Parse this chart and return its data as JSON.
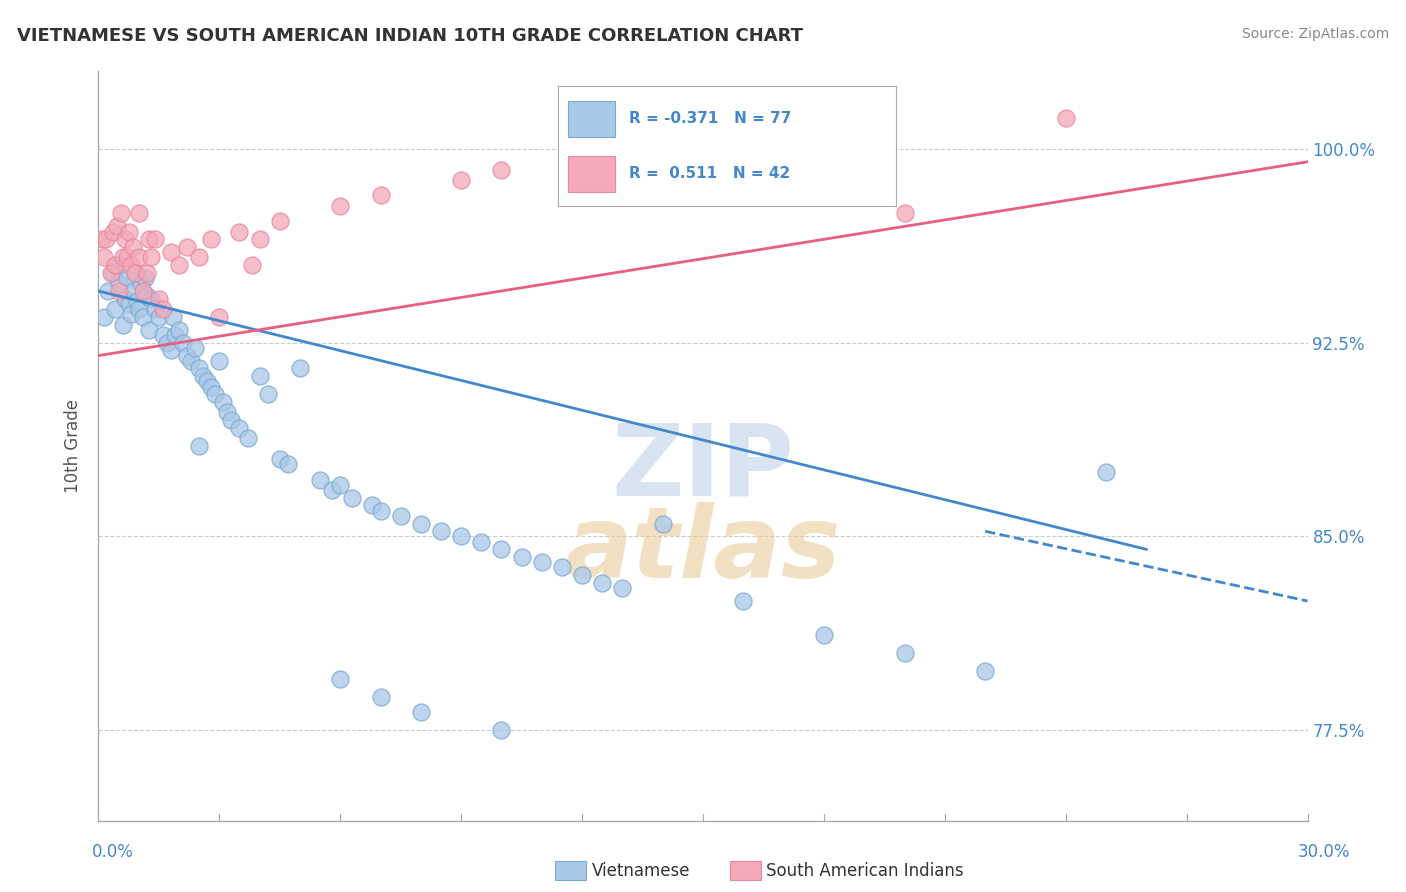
{
  "title": "VIETNAMESE VS SOUTH AMERICAN INDIAN 10TH GRADE CORRELATION CHART",
  "source": "Source: ZipAtlas.com",
  "ylabel": "10th Grade",
  "xlim": [
    0.0,
    30.0
  ],
  "ylim": [
    74.0,
    103.0
  ],
  "yticks": [
    77.5,
    85.0,
    92.5,
    100.0
  ],
  "legend_blue_r": "R = -0.371",
  "legend_blue_n": "N = 77",
  "legend_pink_r": "R =  0.511",
  "legend_pink_n": "N = 42",
  "blue_color": "#a8c8e8",
  "pink_color": "#f4a8b8",
  "blue_edge_color": "#7aaad0",
  "pink_edge_color": "#e888a0",
  "blue_line_color": "#4488cc",
  "pink_line_color": "#e86080",
  "tick_label_color": "#4488cc",
  "title_color": "#333333",
  "blue_trend": [
    0.0,
    94.5,
    26.0,
    84.5
  ],
  "blue_trend_dashed": [
    22.0,
    85.2,
    30.0,
    82.5
  ],
  "pink_trend": [
    0.0,
    92.0,
    30.0,
    99.5
  ],
  "blue_dots": [
    [
      0.15,
      93.5
    ],
    [
      0.25,
      94.5
    ],
    [
      0.35,
      95.2
    ],
    [
      0.4,
      93.8
    ],
    [
      0.5,
      94.8
    ],
    [
      0.55,
      95.5
    ],
    [
      0.6,
      93.2
    ],
    [
      0.65,
      94.2
    ],
    [
      0.7,
      95.0
    ],
    [
      0.75,
      94.0
    ],
    [
      0.8,
      93.6
    ],
    [
      0.85,
      94.5
    ],
    [
      0.9,
      95.2
    ],
    [
      0.95,
      94.1
    ],
    [
      1.0,
      93.8
    ],
    [
      1.05,
      94.8
    ],
    [
      1.1,
      93.5
    ],
    [
      1.15,
      95.0
    ],
    [
      1.2,
      94.3
    ],
    [
      1.25,
      93.0
    ],
    [
      1.3,
      94.2
    ],
    [
      1.4,
      93.8
    ],
    [
      1.5,
      93.5
    ],
    [
      1.6,
      92.8
    ],
    [
      1.7,
      92.5
    ],
    [
      1.8,
      92.2
    ],
    [
      1.85,
      93.5
    ],
    [
      1.9,
      92.8
    ],
    [
      2.0,
      93.0
    ],
    [
      2.1,
      92.5
    ],
    [
      2.2,
      92.0
    ],
    [
      2.3,
      91.8
    ],
    [
      2.4,
      92.3
    ],
    [
      2.5,
      91.5
    ],
    [
      2.6,
      91.2
    ],
    [
      2.7,
      91.0
    ],
    [
      2.8,
      90.8
    ],
    [
      2.9,
      90.5
    ],
    [
      3.0,
      91.8
    ],
    [
      3.1,
      90.2
    ],
    [
      3.2,
      89.8
    ],
    [
      3.3,
      89.5
    ],
    [
      3.5,
      89.2
    ],
    [
      3.7,
      88.8
    ],
    [
      4.0,
      91.2
    ],
    [
      4.2,
      90.5
    ],
    [
      4.5,
      88.0
    ],
    [
      4.7,
      87.8
    ],
    [
      5.0,
      91.5
    ],
    [
      5.5,
      87.2
    ],
    [
      5.8,
      86.8
    ],
    [
      6.0,
      87.0
    ],
    [
      6.3,
      86.5
    ],
    [
      6.8,
      86.2
    ],
    [
      7.0,
      86.0
    ],
    [
      7.5,
      85.8
    ],
    [
      8.0,
      85.5
    ],
    [
      8.5,
      85.2
    ],
    [
      9.0,
      85.0
    ],
    [
      9.5,
      84.8
    ],
    [
      10.0,
      84.5
    ],
    [
      10.5,
      84.2
    ],
    [
      11.0,
      84.0
    ],
    [
      11.5,
      83.8
    ],
    [
      12.0,
      83.5
    ],
    [
      12.5,
      83.2
    ],
    [
      13.0,
      83.0
    ],
    [
      14.0,
      85.5
    ],
    [
      16.0,
      82.5
    ],
    [
      18.0,
      81.2
    ],
    [
      20.0,
      80.5
    ],
    [
      22.0,
      79.8
    ],
    [
      25.0,
      87.5
    ],
    [
      6.0,
      79.5
    ],
    [
      7.0,
      78.8
    ],
    [
      8.0,
      78.2
    ],
    [
      10.0,
      77.5
    ],
    [
      2.5,
      88.5
    ]
  ],
  "pink_dots": [
    [
      0.1,
      96.5
    ],
    [
      0.15,
      95.8
    ],
    [
      0.2,
      96.5
    ],
    [
      0.3,
      95.2
    ],
    [
      0.35,
      96.8
    ],
    [
      0.4,
      95.5
    ],
    [
      0.45,
      97.0
    ],
    [
      0.5,
      94.5
    ],
    [
      0.6,
      95.8
    ],
    [
      0.65,
      96.5
    ],
    [
      0.7,
      95.8
    ],
    [
      0.75,
      96.8
    ],
    [
      0.8,
      95.5
    ],
    [
      0.85,
      96.2
    ],
    [
      0.9,
      95.2
    ],
    [
      1.0,
      95.8
    ],
    [
      1.1,
      94.5
    ],
    [
      1.2,
      95.2
    ],
    [
      1.25,
      96.5
    ],
    [
      1.3,
      95.8
    ],
    [
      1.5,
      94.2
    ],
    [
      1.8,
      96.0
    ],
    [
      2.0,
      95.5
    ],
    [
      2.2,
      96.2
    ],
    [
      2.5,
      95.8
    ],
    [
      2.8,
      96.5
    ],
    [
      3.0,
      93.5
    ],
    [
      3.5,
      96.8
    ],
    [
      3.8,
      95.5
    ],
    [
      4.0,
      96.5
    ],
    [
      4.5,
      97.2
    ],
    [
      6.0,
      97.8
    ],
    [
      7.0,
      98.2
    ],
    [
      9.0,
      98.8
    ],
    [
      10.0,
      99.2
    ],
    [
      12.0,
      99.5
    ],
    [
      20.0,
      97.5
    ],
    [
      24.0,
      101.2
    ],
    [
      1.4,
      96.5
    ],
    [
      1.6,
      93.8
    ],
    [
      0.55,
      97.5
    ],
    [
      1.0,
      97.5
    ]
  ]
}
